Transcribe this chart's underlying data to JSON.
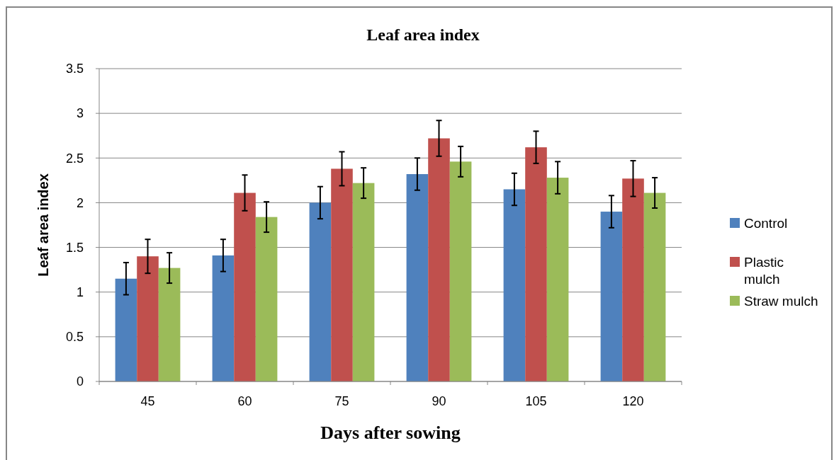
{
  "chart_data": {
    "type": "bar",
    "title": "Leaf area index",
    "xlabel": "Days after sowing",
    "ylabel": "Leaf area index",
    "categories": [
      "45",
      "60",
      "75",
      "90",
      "105",
      "120"
    ],
    "series": [
      {
        "name": "Control",
        "color": "#4f81bd",
        "values": [
          1.15,
          1.41,
          2.0,
          2.32,
          2.15,
          1.9
        ],
        "errors": [
          0.18,
          0.18,
          0.18,
          0.18,
          0.18,
          0.18
        ]
      },
      {
        "name": "Plastic mulch",
        "color": "#c0504d",
        "values": [
          1.4,
          2.11,
          2.38,
          2.72,
          2.62,
          2.27
        ],
        "errors": [
          0.19,
          0.2,
          0.19,
          0.2,
          0.18,
          0.2
        ]
      },
      {
        "name": "Straw mulch",
        "color": "#9bbb59",
        "values": [
          1.27,
          1.84,
          2.22,
          2.46,
          2.28,
          2.11
        ],
        "errors": [
          0.17,
          0.17,
          0.17,
          0.17,
          0.18,
          0.17
        ]
      }
    ],
    "ylim": [
      0,
      3.5
    ],
    "yticks": [
      0,
      0.5,
      1,
      1.5,
      2,
      2.5,
      3,
      3.5
    ],
    "grid": "y",
    "legend": "right"
  }
}
